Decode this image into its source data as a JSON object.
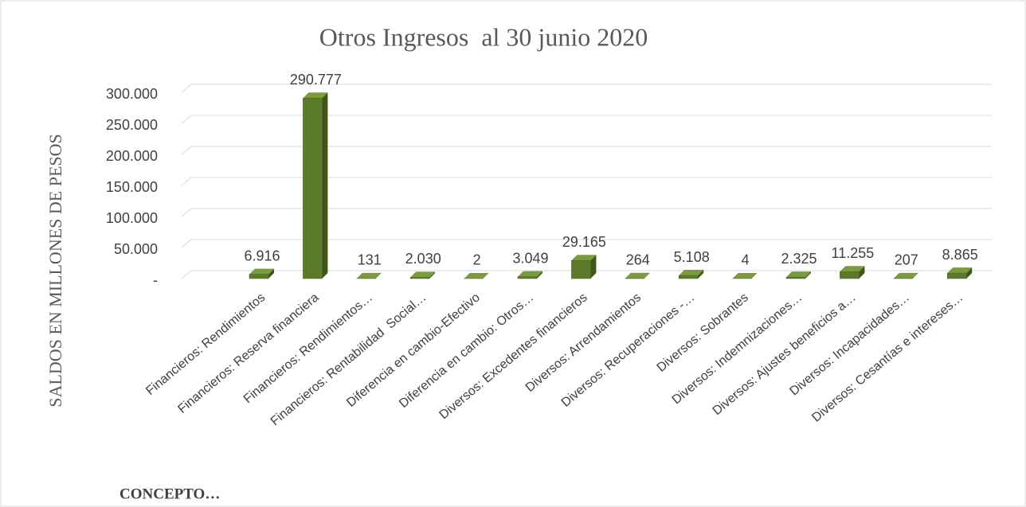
{
  "chart_data": {
    "type": "bar3d",
    "title": "Otros Ingresos  al 30 junio 2020",
    "y_axis_label": "SALDOS EN MILLONES DE PESOS",
    "x_axis_label": "CONCEPTO…",
    "categories": [
      "Financieros: Rendimientos",
      "Financieros: Reserva financiera",
      "Financieros: Rendimientos…",
      "Financieros: Rentabilidad  Social…",
      "Diferencia en cambio-Efectivo",
      "Diferencia en cambio: Otros…",
      "Diversos: Excedentes financieros",
      "Diversos: Arrendamientos",
      "Diversos: Recuperaciones -…",
      "Diversos: Sobrantes",
      "Diversos: Indemnizaciones…",
      "Diversos: Ajustes beneficios a…",
      "Diversos: Incapacidades…",
      "Diversos: Cesantías e intereses…"
    ],
    "values": [
      6916,
      290777,
      131,
      2030,
      2,
      3049,
      29165,
      264,
      5108,
      4,
      2325,
      11255,
      207,
      8865
    ],
    "value_labels": [
      "6.916",
      "290.777",
      "131",
      "2.030",
      "2",
      "3.049",
      "29.165",
      "264",
      "5.108",
      "4",
      "2.325",
      "11.255",
      "207",
      "8.865"
    ],
    "color": "#5b7a2a",
    "ylim": [
      0,
      300000
    ],
    "yticks": [
      {
        "value": 0,
        "label": "-"
      },
      {
        "value": 50000,
        "label": "50.000"
      },
      {
        "value": 100000,
        "label": "100.000"
      },
      {
        "value": 150000,
        "label": "150.000"
      },
      {
        "value": 200000,
        "label": "200.000"
      },
      {
        "value": 250000,
        "label": "250.000"
      },
      {
        "value": 300000,
        "label": "300.000"
      }
    ],
    "grid": true
  }
}
